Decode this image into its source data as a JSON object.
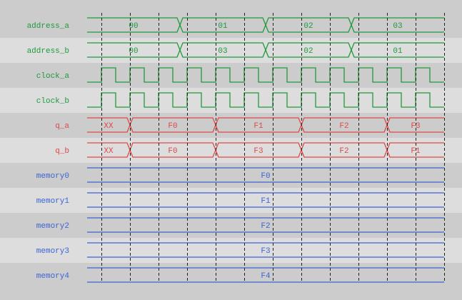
{
  "colors": {
    "digital": "#1f9a3c",
    "output": "#e04848",
    "memory": "#3d63d6",
    "row_dark": "#cccccc",
    "row_light": "#dddddd",
    "grid": "#222222"
  },
  "time_steps": 13,
  "signals": [
    {
      "name": "address_a",
      "type": "bus",
      "color": "digital",
      "segments": [
        {
          "value": "00",
          "from": 0,
          "to": 3.25
        },
        {
          "value": "01",
          "from": 3.25,
          "to": 6.25
        },
        {
          "value": "02",
          "from": 6.25,
          "to": 9.25
        },
        {
          "value": "03",
          "from": 9.25,
          "to": 12.5
        }
      ]
    },
    {
      "name": "address_b",
      "type": "bus",
      "color": "digital",
      "segments": [
        {
          "value": "00",
          "from": 0,
          "to": 3.25
        },
        {
          "value": "03",
          "from": 3.25,
          "to": 6.25
        },
        {
          "value": "02",
          "from": 6.25,
          "to": 9.25
        },
        {
          "value": "01",
          "from": 9.25,
          "to": 12.5
        }
      ]
    },
    {
      "name": "clock_a",
      "type": "clock",
      "color": "digital"
    },
    {
      "name": "clock_b",
      "type": "clock",
      "color": "digital"
    },
    {
      "name": "q_a",
      "type": "bus",
      "color": "output",
      "segments": [
        {
          "value": "XX",
          "from": 0,
          "to": 1.5
        },
        {
          "value": "F0",
          "from": 1.5,
          "to": 4.5
        },
        {
          "value": "F1",
          "from": 4.5,
          "to": 7.5
        },
        {
          "value": "F2",
          "from": 7.5,
          "to": 10.5
        },
        {
          "value": "F3",
          "from": 10.5,
          "to": 12.5
        }
      ]
    },
    {
      "name": "q_b",
      "type": "bus",
      "color": "output",
      "segments": [
        {
          "value": "XX",
          "from": 0,
          "to": 1.5
        },
        {
          "value": "F0",
          "from": 1.5,
          "to": 4.5
        },
        {
          "value": "F3",
          "from": 4.5,
          "to": 7.5
        },
        {
          "value": "F2",
          "from": 7.5,
          "to": 10.5
        },
        {
          "value": "F1",
          "from": 10.5,
          "to": 12.5
        }
      ]
    },
    {
      "name": "memory0",
      "type": "bus",
      "color": "memory",
      "segments": [
        {
          "value": "F0",
          "from": 0,
          "to": 12.5
        }
      ]
    },
    {
      "name": "memory1",
      "type": "bus",
      "color": "memory",
      "segments": [
        {
          "value": "F1",
          "from": 0,
          "to": 12.5
        }
      ]
    },
    {
      "name": "memory2",
      "type": "bus",
      "color": "memory",
      "segments": [
        {
          "value": "F2",
          "from": 0,
          "to": 12.5
        }
      ]
    },
    {
      "name": "memory3",
      "type": "bus",
      "color": "memory",
      "segments": [
        {
          "value": "F3",
          "from": 0,
          "to": 12.5
        }
      ]
    },
    {
      "name": "memory4",
      "type": "bus",
      "color": "memory",
      "segments": [
        {
          "value": "F4",
          "from": 0,
          "to": 12.5
        }
      ]
    }
  ]
}
